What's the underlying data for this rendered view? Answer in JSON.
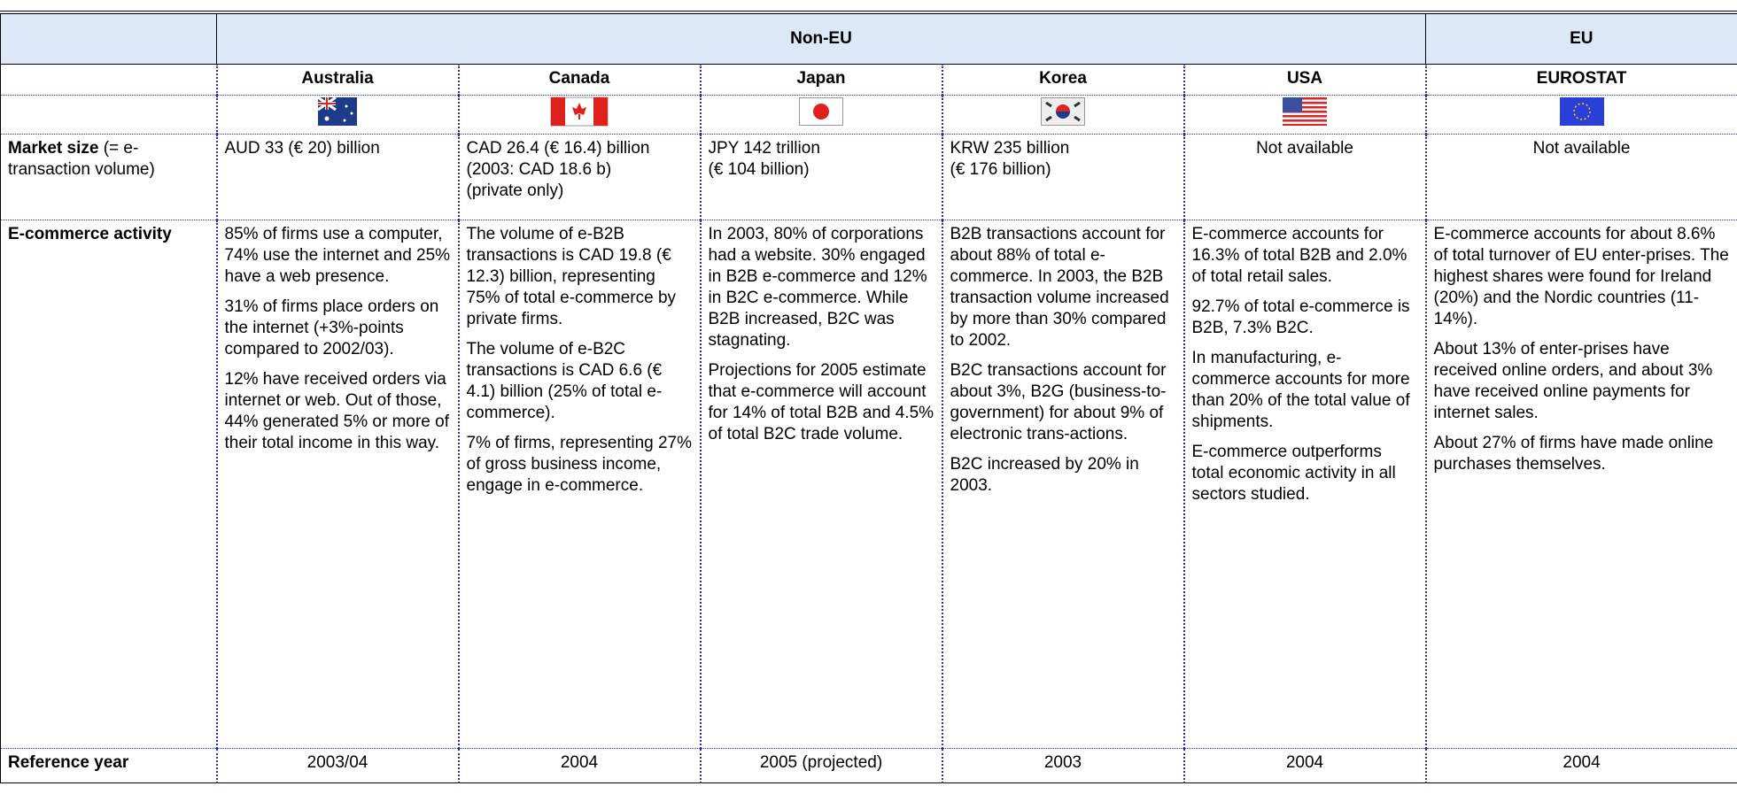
{
  "groups": [
    "Non-EU",
    "EU"
  ],
  "countries": [
    "Australia",
    "Canada",
    "Japan",
    "Korea",
    "USA",
    "EUROSTAT"
  ],
  "rows": [
    {
      "label": "Market size",
      "note": "(= e-transaction volume)",
      "cells": [
        [
          "AUD 33 (€ 20) billion"
        ],
        [
          "CAD 26.4 (€ 16.4) billion",
          "(2003: CAD 18.6 b)",
          "(private only)"
        ],
        [
          "JPY 142 trillion",
          "(€ 104 billion)"
        ],
        [
          "KRW 235 billion",
          "(€ 176 billion)"
        ],
        [
          "Not available"
        ],
        [
          "Not available"
        ]
      ]
    },
    {
      "label": "E-commerce activity",
      "cells": [
        [
          "85% of firms use a computer, 74% use the internet and 25% have a web presence.",
          "31% of firms place orders on the internet (+3%-points compared to 2002/03).",
          "12% have received orders via internet or web. Out of those, 44% generated 5% or more of their total income in this way."
        ],
        [
          "The volume of e-B2B transactions is CAD 19.8 (€ 12.3) billion, representing 75% of total e-commerce by private firms.",
          "The volume of e-B2C transactions is CAD 6.6 (€ 4.1) billion (25% of total e-commerce).",
          "7% of firms, representing 27% of gross business income, engage in e-commerce."
        ],
        [
          "In 2003, 80% of corporations had a website. 30% engaged in B2B e-commerce and 12% in B2C e-commerce. While B2B increased, B2C was stagnating.",
          "Projections for 2005 estimate that e-commerce will account for 14% of total B2B and 4.5% of total B2C trade volume."
        ],
        [
          "B2B transactions account for about 88% of total e-commerce. In 2003, the B2B transaction volume increased by more than 30% compared to 2002.",
          "B2C transactions account for about 3%, B2G (business-to-government) for about 9% of electronic trans-actions.",
          "B2C increased by 20% in 2003."
        ],
        [
          "E-commerce accounts for 16.3% of total B2B and 2.0% of total retail sales.",
          "92.7% of total e-commerce is B2B, 7.3% B2C.",
          "In manufacturing, e-commerce accounts for more than 20% of the total value of shipments.",
          "E-commerce outperforms total economic activity in all sectors studied."
        ],
        [
          "E-commerce accounts for about 8.6% of total turnover of EU enter-prises. The highest shares were found for Ireland (20%) and the Nordic countries (11-14%).",
          "About 13% of enter-prises have received online orders, and about 3% have received online payments for internet sales.",
          "About 27% of firms have made online purchases themselves."
        ]
      ]
    },
    {
      "label": "Reference year",
      "cells": [
        [
          "2003/04"
        ],
        [
          "2004"
        ],
        [
          "2005 (projected)"
        ],
        [
          "2003"
        ],
        [
          "2004"
        ],
        [
          "2004"
        ]
      ]
    }
  ]
}
